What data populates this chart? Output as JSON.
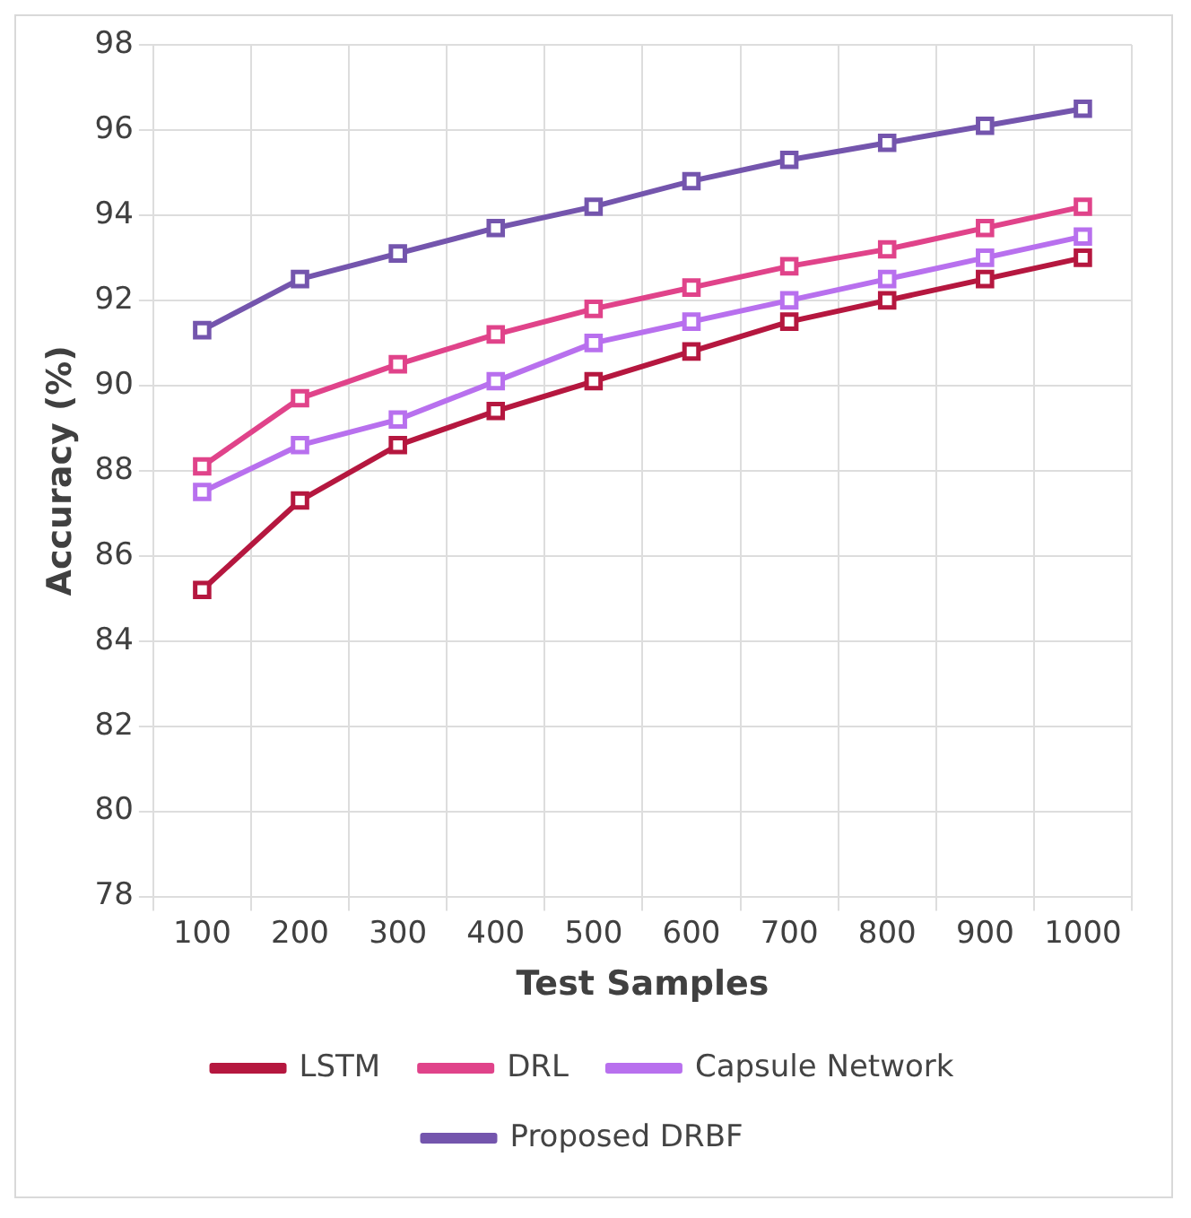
{
  "chart_data": {
    "type": "line",
    "xlabel": "Test Samples",
    "ylabel": "Accuracy (%)",
    "categories": [
      "100",
      "200",
      "300",
      "400",
      "500",
      "600",
      "700",
      "800",
      "900",
      "1000"
    ],
    "ylim": [
      78,
      98
    ],
    "yticks": [
      78,
      80,
      82,
      84,
      86,
      88,
      90,
      92,
      94,
      96,
      98
    ],
    "grid": true,
    "legend": "bottom",
    "marker": "square",
    "line_style": "solid",
    "series": [
      {
        "name": "LSTM",
        "color": "#b5173f",
        "values": [
          85.2,
          87.3,
          88.6,
          89.4,
          90.1,
          90.8,
          91.5,
          92.0,
          92.5,
          93.0
        ]
      },
      {
        "name": "DRL",
        "color": "#e0438a",
        "values": [
          88.1,
          89.7,
          90.5,
          91.2,
          91.8,
          92.3,
          92.8,
          93.2,
          93.7,
          94.2
        ]
      },
      {
        "name": "Capsule Network",
        "color": "#b870ee",
        "values": [
          87.5,
          88.6,
          89.2,
          90.1,
          91.0,
          91.5,
          92.0,
          92.5,
          93.0,
          93.5
        ]
      },
      {
        "name": "Proposed DRBF",
        "color": "#7455ad",
        "values": [
          91.3,
          92.5,
          93.1,
          93.7,
          94.2,
          94.8,
          95.3,
          95.7,
          96.1,
          96.5
        ]
      }
    ]
  }
}
